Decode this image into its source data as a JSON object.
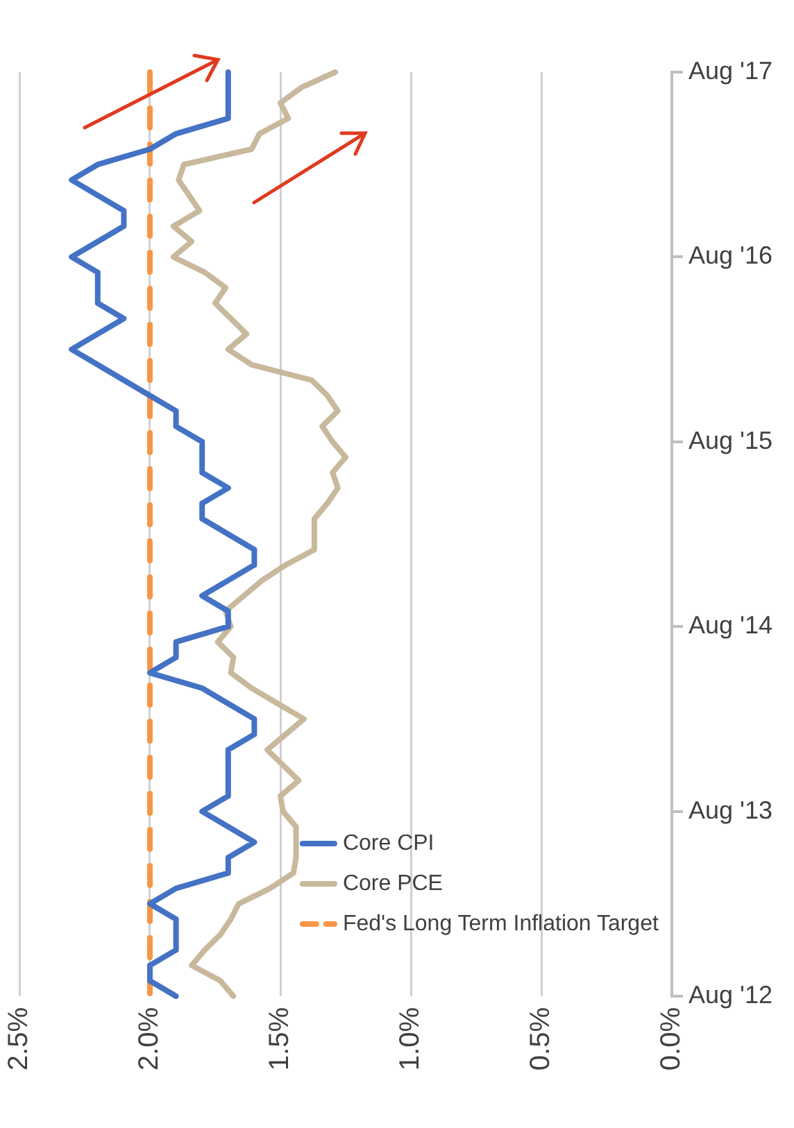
{
  "chart_data": {
    "type": "line",
    "orientation": "horizontal",
    "categories": [
      "Aug '17",
      null,
      null,
      null,
      null,
      null,
      null,
      null,
      null,
      null,
      null,
      null,
      "Aug '16",
      null,
      null,
      null,
      null,
      null,
      null,
      null,
      null,
      null,
      null,
      null,
      "Aug '15",
      null,
      null,
      null,
      null,
      null,
      null,
      null,
      null,
      null,
      null,
      null,
      "Aug '14",
      null,
      null,
      null,
      null,
      null,
      null,
      null,
      null,
      null,
      null,
      null,
      "Aug '13",
      null,
      null,
      null,
      null,
      null,
      null,
      null,
      null,
      null,
      null,
      null,
      "Aug '12"
    ],
    "series": [
      {
        "name": "Core CPI",
        "color": "#4472c4",
        "values": [
          1.7,
          1.7,
          1.7,
          1.7,
          1.9,
          2.0,
          2.2,
          2.3,
          2.2,
          2.1,
          2.1,
          2.2,
          2.3,
          2.2,
          2.2,
          2.2,
          2.1,
          2.2,
          2.3,
          2.2,
          2.1,
          2.0,
          1.9,
          1.9,
          1.8,
          1.8,
          1.8,
          1.7,
          1.8,
          1.8,
          1.7,
          1.6,
          1.6,
          1.7,
          1.8,
          1.7,
          1.7,
          1.9,
          1.9,
          2.0,
          1.8,
          1.7,
          1.6,
          1.6,
          1.7,
          1.7,
          1.7,
          1.7,
          1.8,
          1.7,
          1.6,
          1.7,
          1.7,
          1.9,
          2.0,
          1.9,
          1.9,
          1.9,
          2.0,
          2.0,
          1.9
        ]
      },
      {
        "name": "Core PCE",
        "color": "#c8b89c",
        "values": [
          1.29,
          1.42,
          1.5,
          1.47,
          1.58,
          1.61,
          1.87,
          1.89,
          1.85,
          1.81,
          1.91,
          1.84,
          1.91,
          1.79,
          1.71,
          1.75,
          1.69,
          1.63,
          1.7,
          1.61,
          1.38,
          1.32,
          1.28,
          1.34,
          1.3,
          1.25,
          1.3,
          1.28,
          1.32,
          1.37,
          1.37,
          1.37,
          1.48,
          1.57,
          1.64,
          1.71,
          1.69,
          1.74,
          1.68,
          1.69,
          1.61,
          1.51,
          1.41,
          1.48,
          1.55,
          1.49,
          1.43,
          1.5,
          1.49,
          1.44,
          1.44,
          1.44,
          1.45,
          1.54,
          1.66,
          1.69,
          1.73,
          1.79,
          1.84,
          1.73,
          1.68
        ]
      },
      {
        "name": "Fed's Long Term Inflation Target",
        "color": "#f79646",
        "line_style": "dashed",
        "values": [
          2.0,
          2.0,
          2.0,
          2.0,
          2.0,
          2.0,
          2.0,
          2.0,
          2.0,
          2.0,
          2.0,
          2.0,
          2.0,
          2.0,
          2.0,
          2.0,
          2.0,
          2.0,
          2.0,
          2.0,
          2.0,
          2.0,
          2.0,
          2.0,
          2.0,
          2.0,
          2.0,
          2.0,
          2.0,
          2.0,
          2.0,
          2.0,
          2.0,
          2.0,
          2.0,
          2.0,
          2.0,
          2.0,
          2.0,
          2.0,
          2.0,
          2.0,
          2.0,
          2.0,
          2.0,
          2.0,
          2.0,
          2.0,
          2.0,
          2.0,
          2.0,
          2.0,
          2.0,
          2.0,
          2.0,
          2.0,
          2.0,
          2.0,
          2.0,
          2.0,
          2.0
        ]
      }
    ],
    "xlim": [
      2.5,
      0
    ],
    "xticks": [
      {
        "value": 2.5,
        "label": "2.5%"
      },
      {
        "value": 2,
        "label": "2.0%"
      },
      {
        "value": 1.5,
        "label": "1.5%"
      },
      {
        "value": 1,
        "label": "1.0%"
      },
      {
        "value": 0.5,
        "label": "0.5%"
      },
      {
        "value": 0,
        "label": "0.0%"
      }
    ],
    "grid": "x",
    "legend": "bottom right"
  }
}
